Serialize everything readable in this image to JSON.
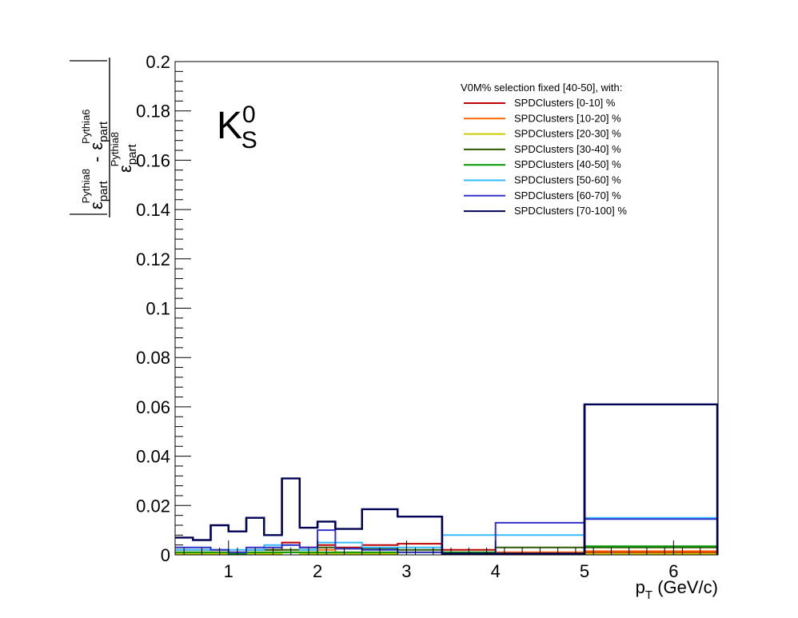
{
  "chart_data": {
    "type": "line",
    "title": "",
    "annotation": {
      "symbol": "K",
      "sub": "S",
      "sup": "0"
    },
    "xlabel": {
      "main": "p",
      "sub": "T",
      "rest": " (GeV/c)"
    },
    "ylabel": {
      "num_left": "ε",
      "num_left_sub": "part",
      "num_left_sup": "Pythia8",
      "num_minus": "-",
      "num_right": "ε",
      "num_right_sub": "part",
      "num_right_sup": "Pythia6",
      "den": "ε",
      "den_sub": "part",
      "den_sup": "Pythia8"
    },
    "xlim": [
      0.4,
      6.5
    ],
    "ylim": [
      0,
      0.2
    ],
    "x_ticks": [
      "1",
      "2",
      "3",
      "4",
      "5",
      "6"
    ],
    "y_ticks": [
      "0",
      "0.02",
      "0.04",
      "0.06",
      "0.08",
      "0.1",
      "0.12",
      "0.14",
      "0.16",
      "0.18",
      "0.2"
    ],
    "grid": false,
    "legend": {
      "placement": "top-right",
      "header": "V0M% selection fixed [40-50], with:"
    },
    "bin_edges": [
      0.4,
      0.6,
      0.8,
      1.0,
      1.2,
      1.4,
      1.6,
      1.8,
      2.0,
      2.2,
      2.5,
      2.9,
      3.4,
      4.0,
      5.0,
      6.5
    ],
    "series": [
      {
        "name": "SPDClusters [0-10] %",
        "color": "#c00000",
        "values": [
          0.001,
          0.001,
          0.001,
          0.001,
          0.002,
          0.002,
          0.005,
          0.003,
          0.004,
          0.003,
          0.004,
          0.0045,
          0.002,
          0.001,
          0.001
        ]
      },
      {
        "name": "SPDClusters [10-20] %",
        "color": "#ff6600",
        "values": [
          0.001,
          0.001,
          0.001,
          0.001,
          0.001,
          0.001,
          0.001,
          0.001,
          0.002,
          0.001,
          0.001,
          0.001,
          0.001,
          0.001,
          0.0015
        ]
      },
      {
        "name": "SPDClusters [20-30] %",
        "color": "#cccc00",
        "values": [
          0.0005,
          0.0005,
          0.0005,
          0.0005,
          0.0005,
          0.0005,
          0.001,
          0.0005,
          0.0005,
          0.0005,
          0.0005,
          0.001,
          0.0005,
          0.0005,
          0.0005
        ]
      },
      {
        "name": "SPDClusters [30-40] %",
        "color": "#2d5a00",
        "values": [
          0.002,
          0.002,
          0.002,
          0.001,
          0.002,
          0.002,
          0.002,
          0.002,
          0.003,
          0.0025,
          0.0025,
          0.002,
          0.001,
          0.003,
          0.003
        ]
      },
      {
        "name": "SPDClusters [40-50] %",
        "color": "#009900",
        "values": [
          0.001,
          0.001,
          0.001,
          0.0005,
          0.001,
          0.001,
          0.001,
          0.001,
          0.001,
          0.001,
          0.001,
          0.001,
          0.001,
          0.0005,
          0.0035
        ]
      },
      {
        "name": "SPDClusters [50-60] %",
        "color": "#33bbff",
        "values": [
          0.002,
          0.002,
          0.002,
          0.002,
          0.002,
          0.004,
          0.004,
          0.002,
          0.005,
          0.005,
          0.003,
          0.003,
          0.008,
          0.008,
          0.015
        ]
      },
      {
        "name": "SPDClusters [60-70] %",
        "color": "#3333cc",
        "values": [
          0.003,
          0.003,
          0.002,
          0.001,
          0.003,
          0.003,
          0.004,
          0.003,
          0.01,
          0.0025,
          0.002,
          0.001,
          0.0005,
          0.013,
          0.0145
        ]
      },
      {
        "name": "SPDClusters [70-100] %",
        "color": "#000055",
        "values": [
          0.007,
          0.006,
          0.012,
          0.0095,
          0.015,
          0.008,
          0.031,
          0.011,
          0.0135,
          0.0105,
          0.0185,
          0.0155,
          0.0005,
          0.0005,
          0.061
        ]
      }
    ]
  }
}
